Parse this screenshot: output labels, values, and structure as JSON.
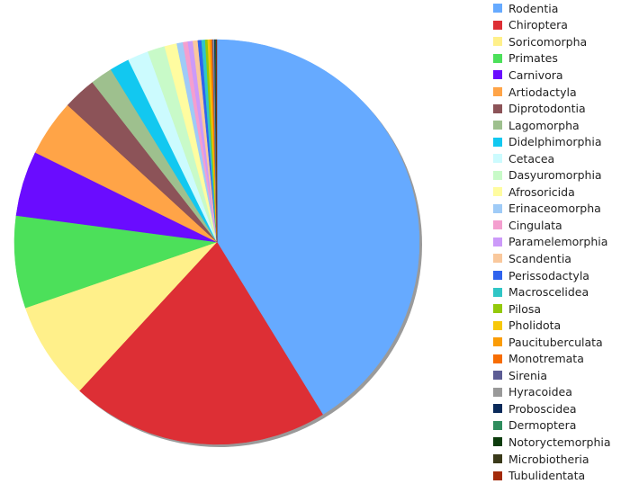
{
  "chart_data": {
    "type": "pie",
    "title": "",
    "legend_position": "right",
    "slices": [
      {
        "label": "Rodentia",
        "value": 42.0,
        "color": "#66aaff"
      },
      {
        "label": "Chiroptera",
        "value": 21.0,
        "color": "#dd2f35"
      },
      {
        "label": "Soricomorpha",
        "value": 8.0,
        "color": "#fff08a"
      },
      {
        "label": "Primates",
        "value": 7.5,
        "color": "#4ce05a"
      },
      {
        "label": "Carnivora",
        "value": 5.3,
        "color": "#6a0cff"
      },
      {
        "label": "Artiodactyla",
        "value": 4.6,
        "color": "#ffa447"
      },
      {
        "label": "Diprotodontia",
        "value": 2.7,
        "color": "#8c5358"
      },
      {
        "label": "Lagomorpha",
        "value": 1.8,
        "color": "#9ec08e"
      },
      {
        "label": "Didelphimorphia",
        "value": 1.6,
        "color": "#12c8f0"
      },
      {
        "label": "Cetacea",
        "value": 1.7,
        "color": "#ccfbfe"
      },
      {
        "label": "Dasyuromorphia",
        "value": 1.4,
        "color": "#c8fac8"
      },
      {
        "label": "Afrosoricida",
        "value": 1.0,
        "color": "#fffca0"
      },
      {
        "label": "Erinaceomorpha",
        "value": 0.5,
        "color": "#9fcbf7"
      },
      {
        "label": "Cingulata",
        "value": 0.4,
        "color": "#f49fcf"
      },
      {
        "label": "Paramelemorphia",
        "value": 0.4,
        "color": "#cc9af9"
      },
      {
        "label": "Scandentia",
        "value": 0.4,
        "color": "#f9c89c"
      },
      {
        "label": "Perissodactyla",
        "value": 0.3,
        "color": "#2f63ee"
      },
      {
        "label": "Macroscelidea",
        "value": 0.3,
        "color": "#30c6c6"
      },
      {
        "label": "Pilosa",
        "value": 0.2,
        "color": "#93c90b"
      },
      {
        "label": "Pholidota",
        "value": 0.15,
        "color": "#f7c809"
      },
      {
        "label": "Paucituberculata",
        "value": 0.12,
        "color": "#fb9c06"
      },
      {
        "label": "Monotremata",
        "value": 0.1,
        "color": "#f76d02"
      },
      {
        "label": "Sirenia",
        "value": 0.08,
        "color": "#5c5c94"
      },
      {
        "label": "Hyracoidea",
        "value": 0.08,
        "color": "#999999"
      },
      {
        "label": "Proboscidea",
        "value": 0.06,
        "color": "#0a2a5a"
      },
      {
        "label": "Dermoptera",
        "value": 0.04,
        "color": "#2f8c5d"
      },
      {
        "label": "Notoryctemorphia",
        "value": 0.04,
        "color": "#0c3c0c"
      },
      {
        "label": "Microbiotheria",
        "value": 0.03,
        "color": "#3a3a1a"
      },
      {
        "label": "Tubulidentata",
        "value": 0.03,
        "color": "#a32a09"
      }
    ]
  }
}
